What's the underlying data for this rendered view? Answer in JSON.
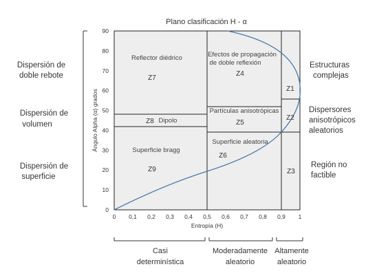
{
  "title": "Plano clasificación H - α",
  "x_axis": {
    "label": "Entropía (H)",
    "ticks": [
      "0",
      "0,1",
      "0,2",
      "0,3",
      "0,4",
      "0,5",
      "0,6",
      "0,7",
      "0,8",
      "0,9",
      "1"
    ],
    "range": [
      0,
      1
    ]
  },
  "y_axis": {
    "label": "Ángulo Alpha (α) grados",
    "ticks": [
      "0",
      "10",
      "20",
      "30",
      "40",
      "50",
      "60",
      "70",
      "80",
      "90"
    ],
    "range": [
      0,
      90
    ]
  },
  "left_labels": [
    {
      "line1": "Dispersión de",
      "line2": "doble rebote"
    },
    {
      "line1": "Dispersión de",
      "line2": "volumen"
    },
    {
      "line1": "Dispersión de",
      "line2": "superficie"
    }
  ],
  "right_labels": [
    {
      "lines": [
        "Estructuras",
        "complejas"
      ]
    },
    {
      "lines": [
        "Dispersores",
        "anisotrópicos",
        "aleatorios"
      ]
    },
    {
      "lines": [
        "Región no",
        "factible"
      ]
    }
  ],
  "zones": {
    "z7": {
      "label": "Reflector diédrico",
      "id": "Z7"
    },
    "z8": {
      "label": "Dipolo",
      "id": "Z8"
    },
    "z9": {
      "label": "Superficie bragg",
      "id": "Z9"
    },
    "z4": {
      "line1": "Efectos de propagación",
      "line2": "de doble reflexión",
      "id": "Z4"
    },
    "z5": {
      "label": "Partículas anisotrópicas",
      "id": "Z5"
    },
    "z6": {
      "label": "Superficie aleatoria",
      "id": "Z6"
    },
    "z1": {
      "id": "Z1"
    },
    "z2": {
      "id": "Z2"
    },
    "z3": {
      "id": "Z3"
    }
  },
  "bottom_groups": [
    {
      "lines": [
        "Casi",
        "determinística"
      ]
    },
    {
      "lines": [
        "Moderadamente",
        "aleatorio"
      ]
    },
    {
      "lines": [
        "Altamente",
        "aleatorio"
      ]
    }
  ],
  "colors": {
    "plot_bg": "#eeeeee",
    "curve": "#4a78a8",
    "lines": "#222222"
  }
}
